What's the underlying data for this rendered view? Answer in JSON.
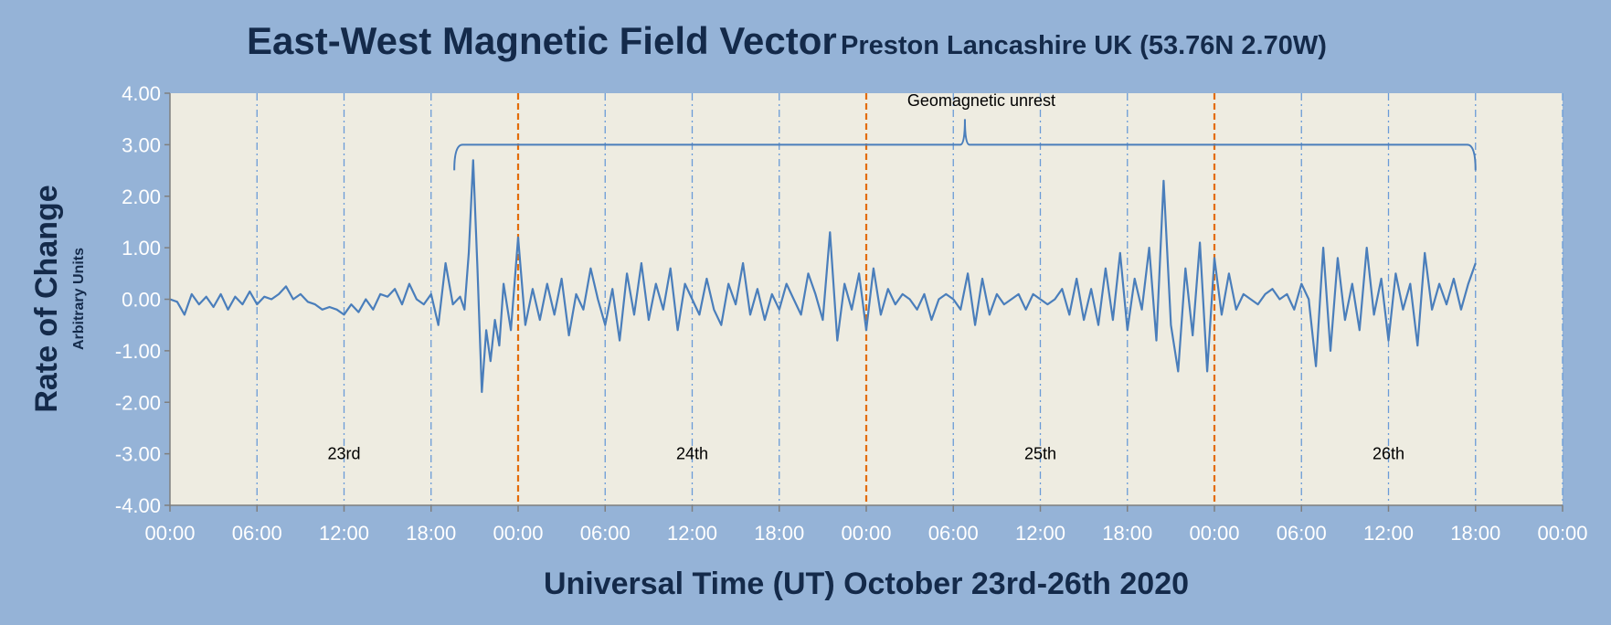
{
  "colors": {
    "background": "#95b3d7",
    "plot_area": "#eeece1",
    "line": "#4a7ebb",
    "day_divider": "#e36c09",
    "grid_6h": "#6a9bd8",
    "text_dark": "#142a4a",
    "tick_text": "#ffffff"
  },
  "chart_data": {
    "type": "line",
    "title": "East-West Magnetic Field Vector",
    "subtitle": "Preston Lancashire UK (53.76N 2.70W)",
    "ylabel": "Rate of Change",
    "ylabel_sub": "Arbitrary Units",
    "xlabel": "Universal Time (UT) October 23rd-26th 2020",
    "ylim": [
      -4,
      4
    ],
    "yticks": [
      "4.00",
      "3.00",
      "2.00",
      "1.00",
      "0.00",
      "-1.00",
      "-2.00",
      "-3.00",
      "-4.00"
    ],
    "xlim_hours": [
      0,
      96
    ],
    "xticks": [
      "00:00",
      "06:00",
      "12:00",
      "18:00",
      "00:00",
      "06:00",
      "12:00",
      "18:00",
      "00:00",
      "06:00",
      "12:00",
      "18:00",
      "00:00",
      "06:00",
      "12:00",
      "18:00",
      "00:00"
    ],
    "grid": "vertical lines every 6 hours; day boundaries dashed orange",
    "day_labels": [
      {
        "text": "23rd",
        "hour": 12,
        "y": -3.1
      },
      {
        "text": "24th",
        "hour": 36,
        "y": -3.1
      },
      {
        "text": "25th",
        "hour": 60,
        "y": -3.1
      },
      {
        "text": "26th",
        "hour": 84,
        "y": -3.1
      }
    ],
    "annotation": {
      "text": "Geomagnetic unrest",
      "start_hour": 19.6,
      "end_hour": 90,
      "peak_hour": 54.8,
      "y": 3.0
    },
    "series": [
      {
        "x_hours": [
          0,
          0.5,
          1,
          1.5,
          2,
          2.5,
          3,
          3.5,
          4,
          4.5,
          5,
          5.5,
          6,
          6.5,
          7,
          7.5,
          8,
          8.5,
          9,
          9.5,
          10,
          10.5,
          11,
          11.5,
          12,
          12.5,
          13,
          13.5,
          14,
          14.5,
          15,
          15.5,
          16,
          16.5,
          17,
          17.5,
          18,
          18.5,
          19,
          19.5,
          20,
          20.3,
          20.6,
          20.9,
          21.2,
          21.5,
          21.8,
          22.1,
          22.4,
          22.7,
          23,
          23.5,
          24,
          24.5,
          25,
          25.5,
          26,
          26.5,
          27,
          27.5,
          28,
          28.5,
          29,
          29.5,
          30,
          30.5,
          31,
          31.5,
          32,
          32.5,
          33,
          33.5,
          34,
          34.5,
          35,
          35.5,
          36,
          36.5,
          37,
          37.5,
          38,
          38.5,
          39,
          39.5,
          40,
          40.5,
          41,
          41.5,
          42,
          42.5,
          43,
          43.5,
          44,
          44.5,
          45,
          45.5,
          46,
          46.5,
          47,
          47.5,
          48,
          48.5,
          49,
          49.5,
          50,
          50.5,
          51,
          51.5,
          52,
          52.5,
          53,
          53.5,
          54,
          54.5,
          55,
          55.5,
          56,
          56.5,
          57,
          57.5,
          58,
          58.5,
          59,
          59.5,
          60,
          60.5,
          61,
          61.5,
          62,
          62.5,
          63,
          63.5,
          64,
          64.5,
          65,
          65.5,
          66,
          66.5,
          67,
          67.5,
          68,
          68.5,
          69,
          69.5,
          70,
          70.5,
          71,
          71.5,
          72,
          72.5,
          73,
          73.5,
          74,
          74.5,
          75,
          75.5,
          76,
          76.5,
          77,
          77.5,
          78,
          78.5,
          79,
          79.5,
          80,
          80.5,
          81,
          81.5,
          82,
          82.5,
          83,
          83.5,
          84,
          84.5,
          85,
          85.5,
          86,
          86.5,
          87,
          87.5,
          88,
          88.5,
          89,
          89.5,
          90
        ],
        "values": [
          0.0,
          -0.05,
          -0.3,
          0.1,
          -0.1,
          0.05,
          -0.15,
          0.1,
          -0.2,
          0.05,
          -0.1,
          0.15,
          -0.1,
          0.05,
          0.0,
          0.1,
          0.25,
          0.0,
          0.1,
          -0.05,
          -0.1,
          -0.2,
          -0.15,
          -0.2,
          -0.3,
          -0.1,
          -0.25,
          0.0,
          -0.2,
          0.1,
          0.05,
          0.2,
          -0.1,
          0.3,
          0.0,
          -0.1,
          0.1,
          -0.5,
          0.7,
          -0.1,
          0.05,
          -0.2,
          0.9,
          2.7,
          0.6,
          -1.8,
          -0.6,
          -1.2,
          -0.4,
          -0.9,
          0.3,
          -0.6,
          1.2,
          -0.5,
          0.2,
          -0.4,
          0.3,
          -0.3,
          0.4,
          -0.7,
          0.1,
          -0.2,
          0.6,
          0.0,
          -0.5,
          0.2,
          -0.8,
          0.5,
          -0.3,
          0.7,
          -0.4,
          0.3,
          -0.2,
          0.6,
          -0.6,
          0.3,
          0.0,
          -0.3,
          0.4,
          -0.2,
          -0.5,
          0.3,
          -0.1,
          0.7,
          -0.3,
          0.2,
          -0.4,
          0.1,
          -0.2,
          0.3,
          0.0,
          -0.3,
          0.5,
          0.1,
          -0.4,
          1.3,
          -0.8,
          0.3,
          -0.2,
          0.5,
          -0.6,
          0.6,
          -0.3,
          0.2,
          -0.1,
          0.1,
          0.0,
          -0.2,
          0.1,
          -0.4,
          0.0,
          0.1,
          0.0,
          -0.2,
          0.5,
          -0.5,
          0.4,
          -0.3,
          0.1,
          -0.1,
          0.0,
          0.1,
          -0.2,
          0.1,
          0.0,
          -0.1,
          0.0,
          0.2,
          -0.3,
          0.4,
          -0.4,
          0.2,
          -0.5,
          0.6,
          -0.4,
          0.9,
          -0.6,
          0.4,
          -0.2,
          1.0,
          -0.8,
          2.3,
          -0.5,
          -1.4,
          0.6,
          -0.7,
          1.1,
          -1.4,
          0.8,
          -0.3,
          0.5,
          -0.2,
          0.1,
          0.0,
          -0.1,
          0.1,
          0.2,
          0.0,
          0.1,
          -0.2,
          0.3,
          0.0,
          -1.3,
          1.0,
          -1.0,
          0.8,
          -0.4,
          0.3,
          -0.6,
          1.0,
          -0.3,
          0.4,
          -0.8,
          0.5,
          -0.2,
          0.3,
          -0.9,
          0.9,
          -0.2,
          0.3,
          -0.1,
          0.4,
          -0.2,
          0.3,
          0.7
        ]
      }
    ]
  }
}
